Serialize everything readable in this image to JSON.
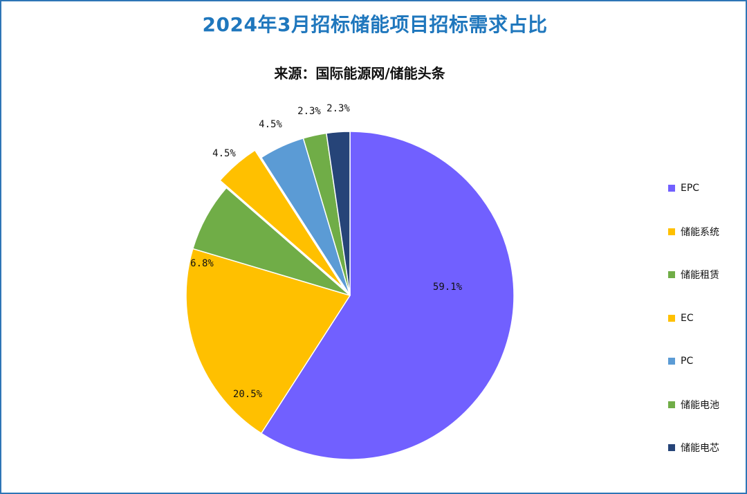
{
  "title": "2024年3月招标储能项目招标需求占比",
  "subtitle": "来源：国际能源网/储能头条",
  "chart_data": {
    "type": "pie",
    "title": "2024年3月招标储能项目招标需求占比",
    "subtitle": "来源：国际能源网/储能头条",
    "legend_position": "right",
    "slices": [
      {
        "label": "EPC",
        "value": 59.1,
        "display": "59.1%",
        "color": "#7160ff"
      },
      {
        "label": "储能系统",
        "value": 20.5,
        "display": "20.5%",
        "color": "#ffc000"
      },
      {
        "label": "储能租赁",
        "value": 6.8,
        "display": "6.8%",
        "color": "#70ad47"
      },
      {
        "label": "EC",
        "value": 4.5,
        "display": "4.5%",
        "color": "#ffc000"
      },
      {
        "label": "PC",
        "value": 4.5,
        "display": "4.5%",
        "color": "#5b9bd5"
      },
      {
        "label": "储能电池",
        "value": 2.3,
        "display": "2.3%",
        "color": "#70ad47"
      },
      {
        "label": "储能电芯",
        "value": 2.3,
        "display": "2.3%",
        "color": "#264478"
      }
    ]
  }
}
